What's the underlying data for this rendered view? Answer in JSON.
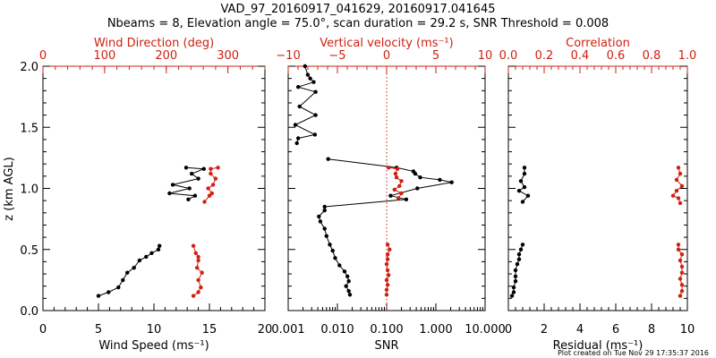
{
  "figure": {
    "title_line1": "VAD_97_20160917_041629, 20160917.041645",
    "title_line2": "Nbeams = 8, Elevation angle = 75.0°, scan duration = 29.2 s, SNR Threshold = 0.008",
    "footer": "Plot created on Tue Nov 29 17:35:37 2016"
  },
  "colors": {
    "primary": "#000000",
    "secondary": "#d02010"
  },
  "chart_data": [
    {
      "type": "line",
      "ylabel": "z (km AGL)",
      "ylim": [
        0,
        2
      ],
      "yticks": [
        "0.0",
        "0.5",
        "1.0",
        "1.5",
        "2.0"
      ],
      "bottom_axis": {
        "label": "Wind Speed (ms⁻¹)",
        "range": [
          0,
          20
        ],
        "ticks": [
          "0",
          "5",
          "10",
          "15",
          "20"
        ]
      },
      "top_axis": {
        "label": "Wind Direction (deg)",
        "range": [
          0,
          360
        ],
        "ticks": [
          "0",
          "100",
          "200",
          "300"
        ]
      },
      "series": [
        {
          "axis": "bottom",
          "color": "#000000",
          "x": [
            5.0,
            5.9,
            6.8,
            7.2,
            7.6,
            8.2,
            8.7,
            9.3,
            9.8,
            10.4,
            10.5
          ],
          "y": [
            0.12,
            0.15,
            0.19,
            0.25,
            0.31,
            0.35,
            0.41,
            0.44,
            0.47,
            0.5,
            0.53
          ]
        },
        {
          "axis": "bottom",
          "color": "#000000",
          "x": [
            12.9,
            14.5,
            13.4,
            14.0,
            11.7,
            13.2,
            11.4,
            13.7,
            13.1
          ],
          "y": [
            1.17,
            1.16,
            1.12,
            1.08,
            1.03,
            1.0,
            0.96,
            0.94,
            0.91
          ]
        },
        {
          "axis": "top",
          "color": "#d02010",
          "x": [
            244,
            252,
            256,
            252,
            258,
            250,
            252,
            252,
            248,
            244
          ],
          "y": [
            0.12,
            0.15,
            0.19,
            0.25,
            0.31,
            0.35,
            0.41,
            0.44,
            0.47,
            0.53
          ]
        },
        {
          "axis": "top",
          "color": "#d02010",
          "x": [
            284,
            272,
            272,
            280,
            276,
            268,
            274,
            270,
            262
          ],
          "y": [
            1.17,
            1.16,
            1.12,
            1.08,
            1.03,
            1.0,
            0.96,
            0.94,
            0.89
          ]
        }
      ]
    },
    {
      "type": "line",
      "ylim": [
        0,
        2
      ],
      "bottom_axis": {
        "label": "SNR",
        "scale": "log",
        "range": [
          0.001,
          10
        ],
        "ticks": [
          "0.001",
          "0.010",
          "0.100",
          "1.000",
          "10.000"
        ]
      },
      "top_axis": {
        "label": "Vertical velocity (ms⁻¹)",
        "range": [
          -10,
          10
        ],
        "ticks": [
          "−10",
          "−5",
          "0",
          "5",
          "10"
        ]
      },
      "reference_line": {
        "axis": "top",
        "value": 0,
        "style": "dotted"
      },
      "series": [
        {
          "axis": "bottom",
          "color": "#000000",
          "x": [
            0.018,
            0.017,
            0.015,
            0.017,
            0.016,
            0.014,
            0.011,
            0.009,
            0.008,
            0.007,
            0.006,
            0.0055,
            0.0045,
            0.0042,
            0.0055
          ],
          "y": [
            0.13,
            0.16,
            0.2,
            0.24,
            0.28,
            0.32,
            0.37,
            0.43,
            0.49,
            0.54,
            0.61,
            0.67,
            0.73,
            0.77,
            0.82
          ]
        },
        {
          "axis": "bottom",
          "color": "#000000",
          "x": [
            0.0055,
            0.25,
            0.12,
            0.42,
            2.1,
            1.2,
            0.48,
            0.38,
            0.35,
            0.16,
            0.0065
          ],
          "y": [
            0.85,
            0.91,
            0.94,
            1.0,
            1.05,
            1.07,
            1.09,
            1.12,
            1.14,
            1.17,
            1.24
          ]
        },
        {
          "axis": "bottom",
          "color": "#000000",
          "x": [
            0.0015,
            0.0016,
            0.0035,
            0.0014,
            0.0036,
            0.0017,
            0.0036,
            0.0016,
            0.0033,
            0.0028,
            0.0025,
            0.0022
          ],
          "y": [
            1.37,
            1.41,
            1.44,
            1.52,
            1.6,
            1.67,
            1.79,
            1.83,
            1.87,
            1.9,
            1.93,
            2.0
          ]
        },
        {
          "axis": "top",
          "color": "#d02010",
          "x": [
            0.0,
            0.0,
            0.1,
            0.0,
            0.2,
            0.1,
            0.0,
            0.1,
            0.1,
            0.3,
            0.1
          ],
          "y": [
            0.13,
            0.17,
            0.21,
            0.25,
            0.29,
            0.33,
            0.38,
            0.42,
            0.46,
            0.5,
            0.54
          ]
        },
        {
          "axis": "top",
          "color": "#d02010",
          "x": [
            1.2,
            1.5,
            0.8,
            1.3,
            1.5,
            1.0,
            0.9,
            1.1,
            0.2
          ],
          "y": [
            0.92,
            0.96,
            0.99,
            1.02,
            1.06,
            1.09,
            1.12,
            1.16,
            1.17
          ]
        }
      ]
    },
    {
      "type": "line",
      "ylim": [
        0,
        2
      ],
      "bottom_axis": {
        "label": "Residual (ms⁻¹)",
        "range": [
          0,
          10
        ],
        "ticks": [
          "0",
          "2",
          "4",
          "6",
          "8",
          "10"
        ]
      },
      "top_axis": {
        "label": "Correlation",
        "range": [
          0,
          1
        ],
        "ticks": [
          "0.0",
          "0.2",
          "0.4",
          "0.6",
          "0.8",
          "1.0"
        ]
      },
      "series": [
        {
          "axis": "bottom",
          "color": "#000000",
          "x": [
            0.2,
            0.3,
            0.3,
            0.4,
            0.4,
            0.4,
            0.5,
            0.6,
            0.6,
            0.7,
            0.8
          ],
          "y": [
            0.12,
            0.15,
            0.19,
            0.24,
            0.28,
            0.33,
            0.38,
            0.42,
            0.46,
            0.5,
            0.54
          ]
        },
        {
          "axis": "bottom",
          "color": "#000000",
          "x": [
            0.9,
            0.9,
            0.7,
            0.9,
            0.6,
            1.1,
            0.8
          ],
          "y": [
            1.17,
            1.12,
            1.06,
            1.01,
            0.98,
            0.94,
            0.89
          ]
        },
        {
          "axis": "top",
          "color": "#d02010",
          "x": [
            0.96,
            0.97,
            0.97,
            0.96,
            0.97,
            0.97,
            0.96,
            0.97,
            0.95,
            0.95
          ],
          "y": [
            0.12,
            0.16,
            0.21,
            0.26,
            0.31,
            0.36,
            0.41,
            0.46,
            0.5,
            0.54
          ]
        },
        {
          "axis": "top",
          "color": "#d02010",
          "x": [
            0.95,
            0.96,
            0.94,
            0.97,
            0.94,
            0.92,
            0.95,
            0.96
          ],
          "y": [
            1.17,
            1.12,
            1.07,
            1.02,
            0.98,
            0.94,
            0.92,
            0.88
          ]
        }
      ]
    }
  ]
}
